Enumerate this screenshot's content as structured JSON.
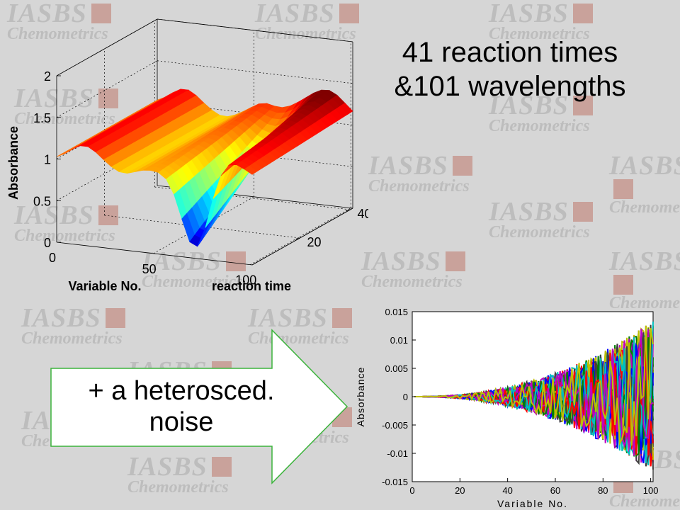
{
  "watermark": {
    "line1": "IASBS",
    "line2": "Chemometrics"
  },
  "title_lines": [
    "41 reaction times",
    "&101 wavelengths"
  ],
  "arrow_text_lines": [
    "+ a heterosced.",
    "noise"
  ],
  "colors": {
    "background": "#d6d6d6",
    "arrow_stroke": "#3cb43c",
    "arrow_fill": "#ffffff"
  },
  "chart_data": [
    {
      "type": "surface",
      "zlabel": "Absorbance",
      "xlabel": "Variable No.",
      "ylabel": "reaction time",
      "zticks": [
        "0",
        "0.5",
        "1",
        "1.5",
        "2"
      ],
      "xticks": [
        "0",
        "50",
        "100"
      ],
      "yticks": [
        "20",
        "40"
      ],
      "zlim": [
        0,
        2
      ],
      "xlim": [
        0,
        101
      ],
      "ylim": [
        1,
        41
      ],
      "colormap": "jet",
      "grid": true
    },
    {
      "type": "line",
      "ylabel": "Absorbance",
      "xlabel": "Variable No.",
      "yticks": [
        "0.015",
        "0.01",
        "0.005",
        "0",
        "-0.005",
        "-0.01",
        "-0.015"
      ],
      "xticks": [
        "0",
        "20",
        "40",
        "60",
        "80",
        "100"
      ],
      "xlim": [
        0,
        101
      ],
      "ylim": [
        -0.015,
        0.015
      ],
      "series_count": 41,
      "series_colors": [
        "#0000ff",
        "#008000",
        "#ff0000",
        "#00bfbf",
        "#bf00bf",
        "#bfbf00",
        "#404040"
      ]
    }
  ]
}
